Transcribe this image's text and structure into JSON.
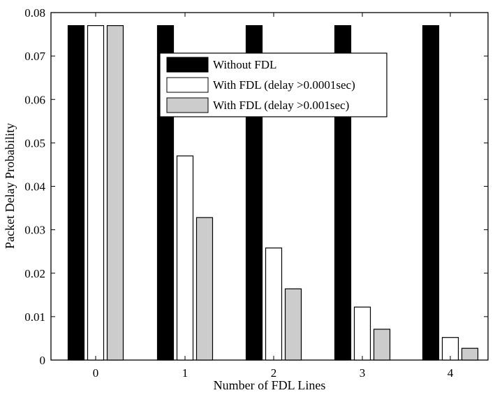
{
  "chart_data": {
    "type": "bar",
    "categories": [
      "0",
      "1",
      "2",
      "3",
      "4"
    ],
    "series": [
      {
        "name": "Without FDL",
        "values": [
          0.077,
          0.077,
          0.077,
          0.077,
          0.077
        ],
        "color": "#000000"
      },
      {
        "name": "With FDL (delay >0.0001sec)",
        "values": [
          0.077,
          0.047,
          0.0258,
          0.0122,
          0.0052
        ],
        "color": "#ffffff"
      },
      {
        "name": "With FDL (delay >0.001sec)",
        "values": [
          0.077,
          0.0328,
          0.0164,
          0.0071,
          0.0027
        ],
        "color": "#cccccc"
      }
    ],
    "xlabel": "Number of FDL Lines",
    "ylabel": "Packet Delay Probability",
    "ylim": [
      0,
      0.08
    ],
    "yticks": [
      "0",
      "0.01",
      "0.02",
      "0.03",
      "0.04",
      "0.05",
      "0.06",
      "0.07",
      "0.08"
    ],
    "legend": "top-center",
    "grid": false
  }
}
